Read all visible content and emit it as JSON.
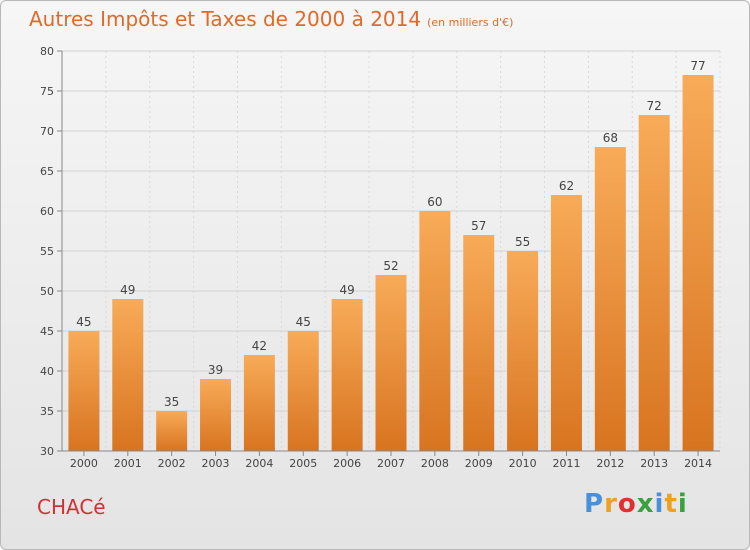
{
  "title": "Autres Impôts et Taxes de 2000 à 2014",
  "subtitle": "(en milliers d'€)",
  "commune": "CHACé",
  "logo": {
    "letters": [
      "P",
      "r",
      "o",
      "x",
      "i",
      "t",
      "i"
    ],
    "colors": [
      "#4a90d9",
      "#f0a020",
      "#e03030",
      "#3aa040",
      "#4a90d9",
      "#f0a020",
      "#3aa040"
    ]
  },
  "colors": {
    "bar_top": "#f8ab58",
    "bar_bottom": "#d87420",
    "title": "#e06a2a",
    "commune": "#cc3333"
  },
  "chart_data": {
    "type": "bar",
    "categories": [
      "2000",
      "2001",
      "2002",
      "2003",
      "2004",
      "2005",
      "2006",
      "2007",
      "2008",
      "2009",
      "2010",
      "2011",
      "2012",
      "2013",
      "2014"
    ],
    "values": [
      45,
      49,
      35,
      39,
      42,
      45,
      49,
      52,
      60,
      57,
      55,
      62,
      68,
      72,
      77
    ],
    "data_labels": [
      "45",
      "49",
      "35",
      "39",
      "42",
      "45",
      "49",
      "52",
      "60",
      "57",
      "55",
      "62",
      "68",
      "72",
      "77"
    ],
    "ylim": [
      30,
      80
    ],
    "yticks": [
      "30",
      "35",
      "40",
      "45",
      "50",
      "55",
      "60",
      "65",
      "70",
      "75",
      "80"
    ],
    "grid": true,
    "xlabel": "",
    "ylabel": ""
  }
}
